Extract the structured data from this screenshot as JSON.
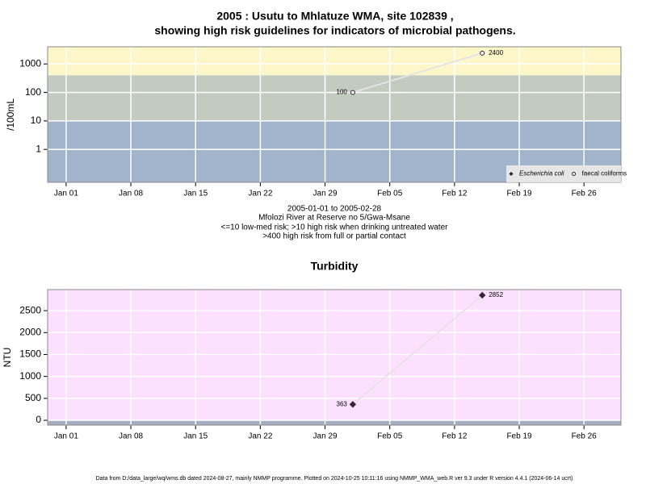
{
  "chart_data": [
    {
      "type": "line",
      "title": "2005 : Usutu to Mhlatuze WMA, site 102839 ,",
      "subtitle": "showing high risk guidelines for indicators of microbial pathogens.",
      "y_label": "/100mL",
      "notes": [
        "2005-01-01 to 2005-02-28",
        "Mfolozi River at Reserve no 5/Gwa-Msane",
        "<=10 low-med risk; >10 high risk when drinking untreated water",
        ">400 high risk from full or partial contact"
      ],
      "x": [
        "2005-02-01",
        "2005-02-15"
      ],
      "series": [
        {
          "name": "Escherichia coli",
          "color": "#222222",
          "marker": "diamond",
          "values": [
            null,
            null
          ]
        },
        {
          "name": "faecal coliforms",
          "color": "#222222",
          "marker": "circle",
          "values": [
            100,
            2400
          ]
        }
      ],
      "line_color": "#e4e4e4",
      "log_y": true,
      "ylim": [
        0.07,
        4000
      ],
      "yticks": [
        1,
        10,
        100,
        1000
      ],
      "xlim": [
        "2004-12-30",
        "2005-03-02"
      ],
      "xticks": [
        {
          "value": "2005-01-01",
          "label": "Jan 01"
        },
        {
          "value": "2005-01-08",
          "label": "Jan 08"
        },
        {
          "value": "2005-01-15",
          "label": "Jan 15"
        },
        {
          "value": "2005-01-22",
          "label": "Jan 22"
        },
        {
          "value": "2005-01-29",
          "label": "Jan 29"
        },
        {
          "value": "2005-02-05",
          "label": "Feb 05"
        },
        {
          "value": "2005-02-12",
          "label": "Feb 12"
        },
        {
          "value": "2005-02-19",
          "label": "Feb 19"
        },
        {
          "value": "2005-02-26",
          "label": "Feb 26"
        }
      ],
      "bands": [
        {
          "to": 10,
          "color": "#a2b3cc"
        },
        {
          "from": 10,
          "to": 400,
          "color": "#c3cbc0"
        },
        {
          "from": 400,
          "color": "#fdf6c8"
        }
      ],
      "grid": true,
      "legend": "bottom right"
    },
    {
      "type": "line",
      "title": "Turbidity",
      "y_label": "NTU",
      "x": [
        "2005-02-01",
        "2005-02-15"
      ],
      "values": [
        363,
        2852
      ],
      "color": "#3a2434",
      "marker": "diamond",
      "line_color": "#e4e4e4",
      "log_y": false,
      "ylim": [
        -110,
        2980
      ],
      "yticks": [
        0,
        500,
        1000,
        1500,
        2000,
        2500
      ],
      "xlim": [
        "2004-12-30",
        "2005-03-02"
      ],
      "xticks": [
        {
          "value": "2005-01-01",
          "label": "Jan 01"
        },
        {
          "value": "2005-01-08",
          "label": "Jan 08"
        },
        {
          "value": "2005-01-15",
          "label": "Jan 15"
        },
        {
          "value": "2005-01-22",
          "label": "Jan 22"
        },
        {
          "value": "2005-01-29",
          "label": "Jan 29"
        },
        {
          "value": "2005-02-05",
          "label": "Feb 05"
        },
        {
          "value": "2005-02-12",
          "label": "Feb 12"
        },
        {
          "value": "2005-02-19",
          "label": "Feb 19"
        },
        {
          "value": "2005-02-26",
          "label": "Feb 26"
        }
      ],
      "bands": [
        {
          "to": 0,
          "color": "#a4aec0"
        },
        {
          "from": 0,
          "color": "#fde0fd"
        }
      ],
      "grid": true
    }
  ],
  "footer": "Data from D:/data_large/wq/wms.db dated 2024-08-27, mainly NMMP programme. Plotted on 2024-10-25 10:11:16 using NMMP_WMA_web.R ver 9.3 under R version 4.4.1 (2024-06-14 ucrt)"
}
